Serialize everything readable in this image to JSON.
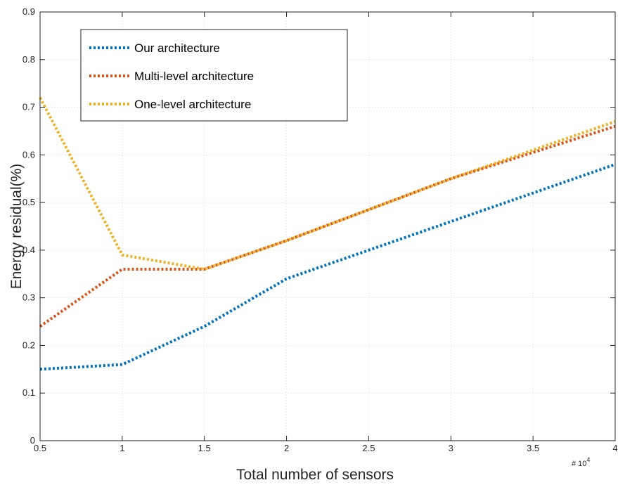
{
  "chart_data": {
    "type": "line",
    "title": "",
    "xlabel": "Total number of sensors",
    "ylabel": "Energy residual(%)",
    "x_exponent_prefix": "# 10",
    "x_exponent_power": "4",
    "x": [
      0.5,
      1,
      1.5,
      2,
      2.5,
      3,
      3.5,
      4
    ],
    "xlim": [
      0.5,
      4
    ],
    "ylim": [
      0,
      0.9
    ],
    "xticks": [
      "0.5",
      "1",
      "1.5",
      "2",
      "2.5",
      "3",
      "3.5",
      "4"
    ],
    "yticks": [
      "0",
      "0.1",
      "0.2",
      "0.3",
      "0.4",
      "0.5",
      "0.6",
      "0.7",
      "0.8",
      "0.9"
    ],
    "grid": true,
    "legend_position": "top-left",
    "series": [
      {
        "name": "Our architecture",
        "color": "#0072BD",
        "values": [
          0.15,
          0.16,
          0.24,
          0.34,
          0.4,
          0.46,
          0.52,
          0.58
        ]
      },
      {
        "name": "Multi-level architecture",
        "color": "#D95319",
        "values": [
          0.24,
          0.36,
          0.36,
          0.42,
          0.485,
          0.55,
          0.605,
          0.66
        ]
      },
      {
        "name": "One-level architecture",
        "color": "#EDB120",
        "values": [
          0.72,
          0.39,
          0.36,
          0.42,
          0.485,
          0.55,
          0.61,
          0.67
        ]
      }
    ]
  }
}
